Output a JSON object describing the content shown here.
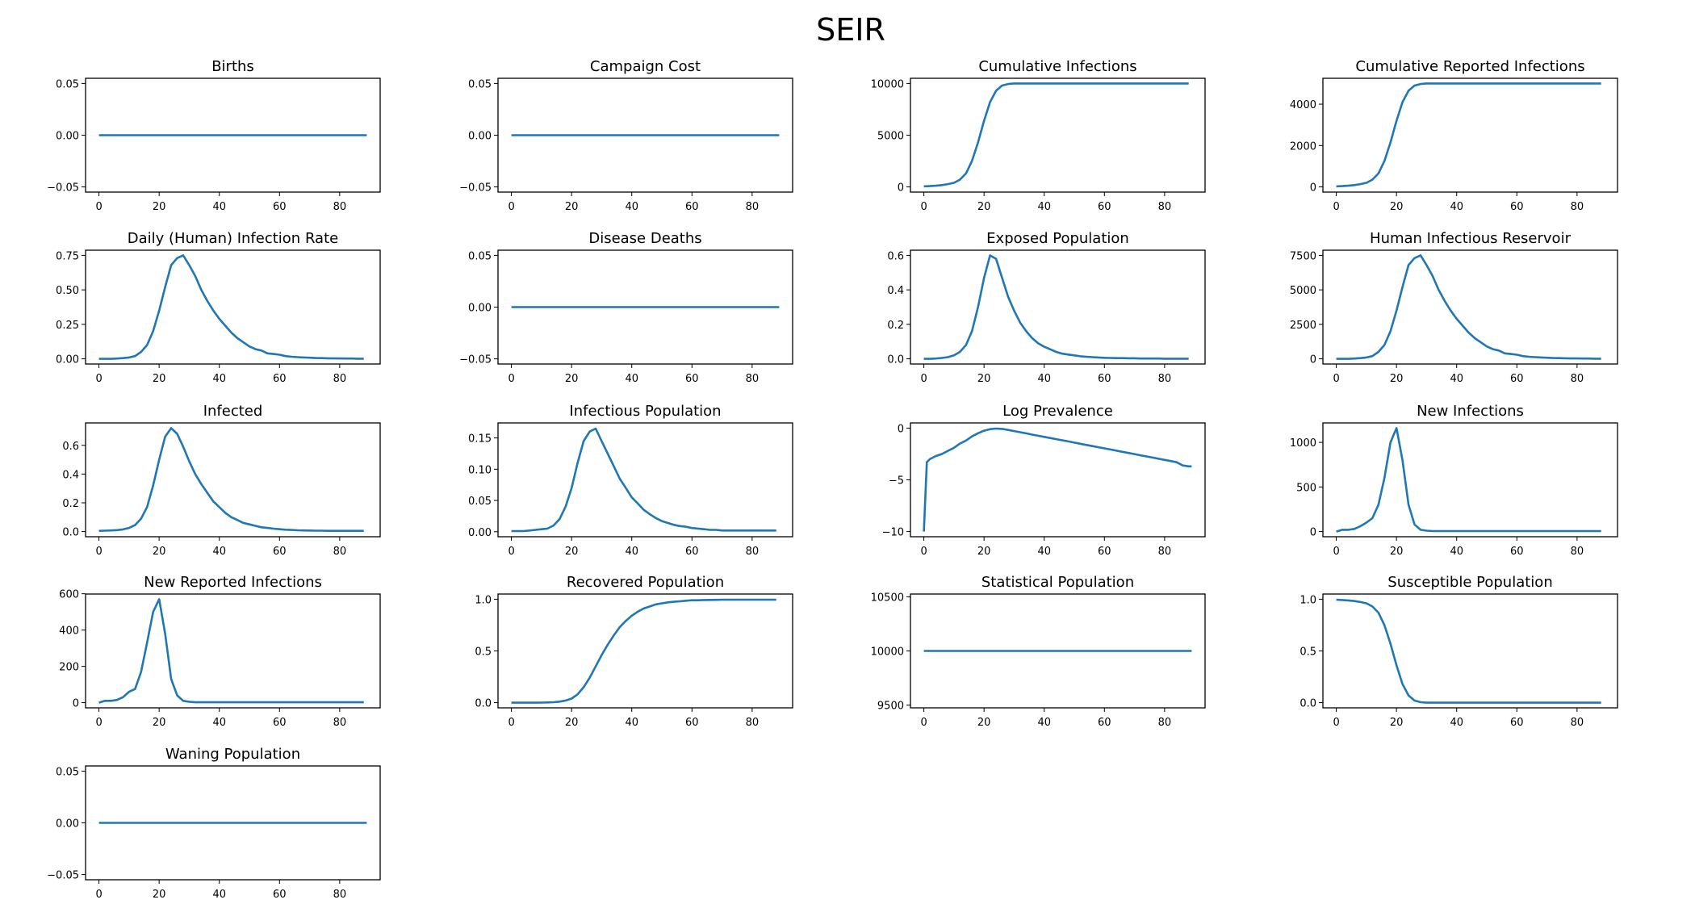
{
  "suptitle": "SEIR",
  "chart_data": {
    "type": "line",
    "title": "SEIR",
    "layout": "grid 5 rows x 4 columns",
    "color": "#1f77b4",
    "x": [
      0,
      2,
      4,
      6,
      8,
      10,
      12,
      14,
      16,
      18,
      20,
      22,
      24,
      26,
      28,
      30,
      32,
      34,
      36,
      38,
      40,
      42,
      44,
      46,
      48,
      50,
      52,
      54,
      56,
      58,
      60,
      62,
      64,
      66,
      68,
      70,
      72,
      74,
      76,
      78,
      80,
      82,
      84,
      86,
      88
    ],
    "xlim": [
      -4.45,
      93.45
    ],
    "xticks": [
      0,
      20,
      40,
      60,
      80
    ],
    "panels": [
      {
        "title": "Births",
        "ylim": [
          -0.055,
          0.055
        ],
        "yticks": [
          -0.05,
          0,
          0.05
        ],
        "yticklabels": [
          "−0.05",
          "0.00",
          "0.05"
        ],
        "constant": 0
      },
      {
        "title": "Campaign Cost",
        "ylim": [
          -0.055,
          0.055
        ],
        "yticks": [
          -0.05,
          0,
          0.05
        ],
        "yticklabels": [
          "−0.05",
          "0.00",
          "0.05"
        ],
        "constant": 0
      },
      {
        "title": "Cumulative Infections",
        "ylim": [
          -500,
          10500
        ],
        "yticks": [
          0,
          5000,
          10000
        ],
        "yticklabels": [
          "0",
          "5000",
          "10000"
        ],
        "values": [
          50,
          80,
          120,
          180,
          270,
          400,
          700,
          1300,
          2500,
          4300,
          6400,
          8200,
          9300,
          9800,
          9950,
          10000,
          10000,
          10000,
          10000,
          10000,
          10000,
          10000,
          10000,
          10000,
          10000,
          10000,
          10000,
          10000,
          10000,
          10000,
          10000,
          10000,
          10000,
          10000,
          10000,
          10000,
          10000,
          10000,
          10000,
          10000,
          10000,
          10000,
          10000,
          10000,
          10000
        ]
      },
      {
        "title": "Cumulative Reported Infections",
        "ylim": [
          -250,
          5250
        ],
        "yticks": [
          0,
          2000,
          4000
        ],
        "yticklabels": [
          "0",
          "2000",
          "4000"
        ],
        "values": [
          25,
          40,
          60,
          90,
          135,
          200,
          350,
          650,
          1250,
          2150,
          3200,
          4100,
          4650,
          4900,
          4975,
          5000,
          5000,
          5000,
          5000,
          5000,
          5000,
          5000,
          5000,
          5000,
          5000,
          5000,
          5000,
          5000,
          5000,
          5000,
          5000,
          5000,
          5000,
          5000,
          5000,
          5000,
          5000,
          5000,
          5000,
          5000,
          5000,
          5000,
          5000,
          5000,
          5000
        ]
      },
      {
        "title": "Daily (Human) Infection Rate",
        "ylim": [
          -0.0375,
          0.7875
        ],
        "yticks": [
          0,
          0.25,
          0.5,
          0.75
        ],
        "yticklabels": [
          "0.00",
          "0.25",
          "0.50",
          "0.75"
        ],
        "values": [
          0,
          0,
          0,
          0.002,
          0.005,
          0.01,
          0.02,
          0.05,
          0.1,
          0.2,
          0.35,
          0.52,
          0.68,
          0.73,
          0.75,
          0.68,
          0.6,
          0.5,
          0.42,
          0.35,
          0.29,
          0.24,
          0.19,
          0.15,
          0.12,
          0.09,
          0.07,
          0.06,
          0.04,
          0.035,
          0.03,
          0.02,
          0.015,
          0.012,
          0.01,
          0.008,
          0.006,
          0.005,
          0.004,
          0.003,
          0.003,
          0.002,
          0.002,
          0.001,
          0.001
        ]
      },
      {
        "title": "Disease Deaths",
        "ylim": [
          -0.055,
          0.055
        ],
        "yticks": [
          -0.05,
          0,
          0.05
        ],
        "yticklabels": [
          "−0.05",
          "0.00",
          "0.05"
        ],
        "constant": 0
      },
      {
        "title": "Exposed Population",
        "ylim": [
          -0.03,
          0.63
        ],
        "yticks": [
          0,
          0.2,
          0.4,
          0.6
        ],
        "yticklabels": [
          "0.0",
          "0.2",
          "0.4",
          "0.6"
        ],
        "values": [
          0,
          0,
          0.002,
          0.005,
          0.01,
          0.02,
          0.04,
          0.08,
          0.16,
          0.3,
          0.47,
          0.6,
          0.58,
          0.47,
          0.36,
          0.28,
          0.21,
          0.16,
          0.12,
          0.09,
          0.07,
          0.055,
          0.04,
          0.03,
          0.025,
          0.02,
          0.015,
          0.012,
          0.01,
          0.008,
          0.006,
          0.005,
          0.004,
          0.004,
          0.003,
          0.003,
          0.002,
          0.002,
          0.002,
          0.002,
          0.001,
          0.001,
          0.001,
          0.001,
          0.001
        ]
      },
      {
        "title": "Human Infectious Reservoir",
        "ylim": [
          -375,
          7875
        ],
        "yticks": [
          0,
          2500,
          5000,
          7500
        ],
        "yticklabels": [
          "0",
          "2500",
          "5000",
          "7500"
        ],
        "values": [
          0,
          0,
          0,
          20,
          50,
          100,
          200,
          500,
          1000,
          2000,
          3500,
          5200,
          6800,
          7300,
          7500,
          6800,
          6000,
          5000,
          4200,
          3500,
          2900,
          2400,
          1900,
          1500,
          1200,
          900,
          700,
          600,
          400,
          350,
          300,
          200,
          150,
          120,
          100,
          80,
          60,
          50,
          40,
          30,
          30,
          20,
          20,
          10,
          10
        ]
      },
      {
        "title": "Infected",
        "ylim": [
          -0.036,
          0.756
        ],
        "yticks": [
          0,
          0.2,
          0.4,
          0.6
        ],
        "yticklabels": [
          "0.0",
          "0.2",
          "0.4",
          "0.6"
        ],
        "values": [
          0.005,
          0.006,
          0.008,
          0.01,
          0.015,
          0.025,
          0.045,
          0.09,
          0.17,
          0.32,
          0.5,
          0.66,
          0.72,
          0.68,
          0.59,
          0.49,
          0.4,
          0.33,
          0.27,
          0.21,
          0.17,
          0.13,
          0.1,
          0.08,
          0.06,
          0.05,
          0.04,
          0.03,
          0.025,
          0.02,
          0.016,
          0.013,
          0.011,
          0.009,
          0.008,
          0.007,
          0.006,
          0.006,
          0.005,
          0.005,
          0.005,
          0.005,
          0.005,
          0.005,
          0.005
        ]
      },
      {
        "title": "Infectious Population",
        "ylim": [
          -0.008,
          0.174
        ],
        "yticks": [
          0,
          0.05,
          0.1,
          0.15
        ],
        "yticklabels": [
          "0.00",
          "0.05",
          "0.10",
          "0.15"
        ],
        "values": [
          0.001,
          0.001,
          0.001,
          0.002,
          0.003,
          0.004,
          0.005,
          0.01,
          0.02,
          0.04,
          0.07,
          0.11,
          0.145,
          0.16,
          0.165,
          0.145,
          0.125,
          0.105,
          0.085,
          0.07,
          0.055,
          0.045,
          0.035,
          0.028,
          0.022,
          0.017,
          0.014,
          0.011,
          0.009,
          0.008,
          0.006,
          0.005,
          0.004,
          0.003,
          0.003,
          0.002,
          0.002,
          0.002,
          0.002,
          0.002,
          0.002,
          0.002,
          0.002,
          0.002,
          0.002
        ]
      },
      {
        "title": "Log Prevalence",
        "ylim": [
          -10.5,
          0.5
        ],
        "yticks": [
          -10,
          -5,
          0
        ],
        "yticklabels": [
          "−10",
          "−5",
          "0"
        ],
        "x": [
          0,
          1,
          2,
          4,
          6,
          8,
          10,
          12,
          14,
          16,
          18,
          20,
          22,
          24,
          26,
          28,
          30,
          32,
          34,
          36,
          38,
          40,
          42,
          44,
          46,
          48,
          50,
          52,
          54,
          56,
          58,
          60,
          62,
          64,
          66,
          68,
          70,
          72,
          74,
          76,
          78,
          80,
          82,
          84,
          86,
          88,
          89
        ],
        "values": [
          -10,
          -3.3,
          -3.0,
          -2.7,
          -2.5,
          -2.2,
          -1.9,
          -1.5,
          -1.2,
          -0.8,
          -0.5,
          -0.25,
          -0.1,
          -0.05,
          -0.08,
          -0.18,
          -0.29,
          -0.4,
          -0.51,
          -0.63,
          -0.74,
          -0.85,
          -0.96,
          -1.07,
          -1.18,
          -1.29,
          -1.4,
          -1.51,
          -1.63,
          -1.74,
          -1.85,
          -1.96,
          -2.07,
          -2.18,
          -2.29,
          -2.4,
          -2.51,
          -2.63,
          -2.74,
          -2.85,
          -2.96,
          -3.07,
          -3.18,
          -3.3,
          -3.6,
          -3.7,
          -3.7
        ]
      },
      {
        "title": "New Infections",
        "ylim": [
          -58,
          1218
        ],
        "yticks": [
          0,
          500,
          1000
        ],
        "yticklabels": [
          "0",
          "500",
          "1000"
        ],
        "values": [
          0,
          20,
          20,
          30,
          60,
          100,
          150,
          300,
          600,
          1000,
          1160,
          800,
          300,
          80,
          20,
          10,
          5,
          5,
          5,
          5,
          5,
          5,
          5,
          5,
          5,
          5,
          5,
          5,
          5,
          5,
          5,
          5,
          5,
          5,
          5,
          5,
          5,
          5,
          5,
          5,
          5,
          5,
          5,
          5,
          5
        ]
      },
      {
        "title": "New Reported Infections",
        "ylim": [
          -28.5,
          598.5
        ],
        "yticks": [
          0,
          200,
          400,
          600
        ],
        "yticklabels": [
          "0",
          "200",
          "400",
          "600"
        ],
        "values": [
          0,
          10,
          10,
          15,
          30,
          60,
          75,
          170,
          330,
          500,
          570,
          380,
          130,
          40,
          10,
          5,
          2,
          2,
          2,
          2,
          2,
          2,
          2,
          2,
          2,
          2,
          2,
          2,
          2,
          2,
          2,
          2,
          2,
          2,
          2,
          2,
          2,
          2,
          2,
          2,
          2,
          2,
          2,
          2,
          2
        ]
      },
      {
        "title": "Recovered Population",
        "ylim": [
          -0.05,
          1.05
        ],
        "yticks": [
          0,
          0.5,
          1
        ],
        "yticklabels": [
          "0.0",
          "0.5",
          "1.0"
        ],
        "values": [
          0,
          0,
          0,
          0,
          0,
          0.001,
          0.002,
          0.005,
          0.01,
          0.02,
          0.04,
          0.08,
          0.15,
          0.24,
          0.35,
          0.46,
          0.56,
          0.65,
          0.73,
          0.79,
          0.84,
          0.88,
          0.91,
          0.93,
          0.95,
          0.96,
          0.97,
          0.975,
          0.98,
          0.985,
          0.99,
          0.99,
          0.992,
          0.993,
          0.994,
          0.995,
          0.995,
          0.995,
          0.995,
          0.995,
          0.995,
          0.995,
          0.995,
          0.995,
          0.995
        ]
      },
      {
        "title": "Statistical Population",
        "ylim": [
          -0.055,
          0.055
        ],
        "yoffset": 10000,
        "yticks": [
          9500,
          10000,
          10500
        ],
        "yticklabels": [
          "9500",
          "10000",
          "10500"
        ],
        "ylim_abs": [
          9475,
          10525
        ],
        "constant": 10000
      },
      {
        "title": "Susceptible Population",
        "ylim": [
          -0.05,
          1.05
        ],
        "yticks": [
          0,
          0.5,
          1
        ],
        "yticklabels": [
          "0.0",
          "0.5",
          "1.0"
        ],
        "values": [
          0.995,
          0.992,
          0.988,
          0.982,
          0.973,
          0.96,
          0.93,
          0.87,
          0.75,
          0.57,
          0.36,
          0.18,
          0.07,
          0.02,
          0.005,
          0,
          0,
          0,
          0,
          0,
          0,
          0,
          0,
          0,
          0,
          0,
          0,
          0,
          0,
          0,
          0,
          0,
          0,
          0,
          0,
          0,
          0,
          0,
          0,
          0,
          0,
          0,
          0,
          0,
          0
        ]
      },
      {
        "title": "Waning Population",
        "ylim": [
          -0.055,
          0.055
        ],
        "yticks": [
          -0.05,
          0,
          0.05
        ],
        "yticklabels": [
          "−0.05",
          "0.00",
          "0.05"
        ],
        "constant": 0
      }
    ]
  }
}
